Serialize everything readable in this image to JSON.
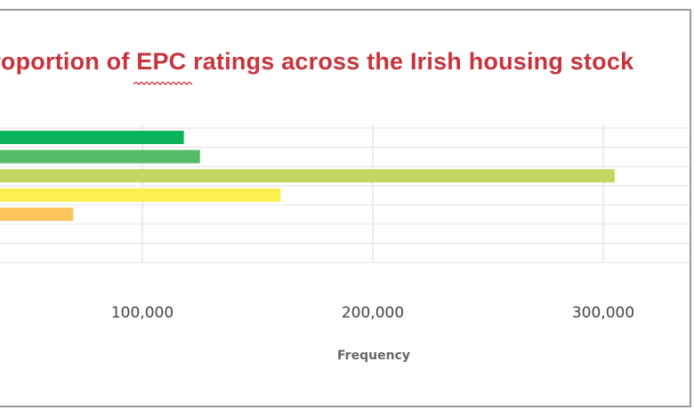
{
  "chart_data": {
    "type": "bar",
    "orientation": "horizontal",
    "title": "Proportion of EPC ratings across the Irish housing stock",
    "xlabel": "Frequency",
    "ylabel": "",
    "xlim": [
      0,
      350000
    ],
    "x_ticks": [
      100000,
      200000,
      300000
    ],
    "x_tick_labels": [
      "100,000",
      "200,000",
      "300,000"
    ],
    "grid": true,
    "legend": "none",
    "values": [
      118000,
      125000,
      305000,
      160000,
      70000
    ],
    "colors": [
      "#0ab45a",
      "#55bb66",
      "#c2d860",
      "#fcee4e",
      "#fec45c"
    ]
  }
}
